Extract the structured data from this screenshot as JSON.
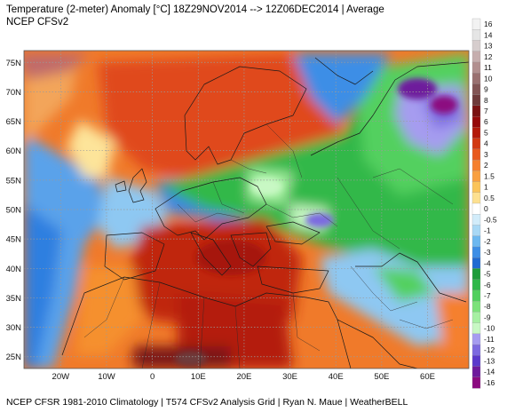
{
  "header": {
    "title": "Temperature (2-meter) Anomaly  [°C] 18Z29NOV2014  --> 12Z06DEC2014 | Average",
    "subtitle": "NCEP CFSv2"
  },
  "footer": {
    "text": "NCEP CFSR 1981-2010 Climatology | T574 CFSv2 Analysis Grid | Ryan N. Maue | WeatherBELL"
  },
  "map": {
    "lat_labels": [
      "75N",
      "70N",
      "65N",
      "60N",
      "55N",
      "50N",
      "45N",
      "40N",
      "35N",
      "30N",
      "25N"
    ],
    "lon_labels": [
      "20W",
      "10W",
      "0",
      "10E",
      "20E",
      "30E",
      "40E",
      "50E",
      "60E"
    ],
    "lat_range": [
      23,
      77
    ],
    "lon_range": [
      -28,
      69
    ]
  },
  "colorbar": {
    "labels": [
      "16",
      "14",
      "13",
      "12",
      "11",
      "10",
      "9",
      "8",
      "7",
      "6",
      "5",
      "4",
      "3",
      "2",
      "1.5",
      "1",
      "0.5",
      "0",
      "-0.5",
      "-1",
      "-2",
      "-3",
      "-4",
      "-5",
      "-6",
      "-7",
      "-8",
      "-9",
      "-10",
      "-11",
      "-12",
      "-13",
      "-14",
      "-16"
    ],
    "colors": [
      "#f2f2f2",
      "#e5e5e5",
      "#d6cdcd",
      "#c6aeae",
      "#b28f8f",
      "#9a7070",
      "#825454",
      "#6e3a3a",
      "#7a1212",
      "#960a0a",
      "#b41a0a",
      "#d23a12",
      "#e85a1e",
      "#f5802e",
      "#f9a040",
      "#fbc45a",
      "#fde090",
      "#ffffff",
      "#d2ecfa",
      "#a8d8f5",
      "#6cb8f0",
      "#3c8ee6",
      "#1e6ad2",
      "#1e9c3a",
      "#30b84a",
      "#52d05e",
      "#7ce27a",
      "#a6f0a2",
      "#c8f8c4",
      "#a69cf0",
      "#7c6ae0",
      "#5a3acc",
      "#6e1a9c",
      "#8c0a80"
    ]
  }
}
